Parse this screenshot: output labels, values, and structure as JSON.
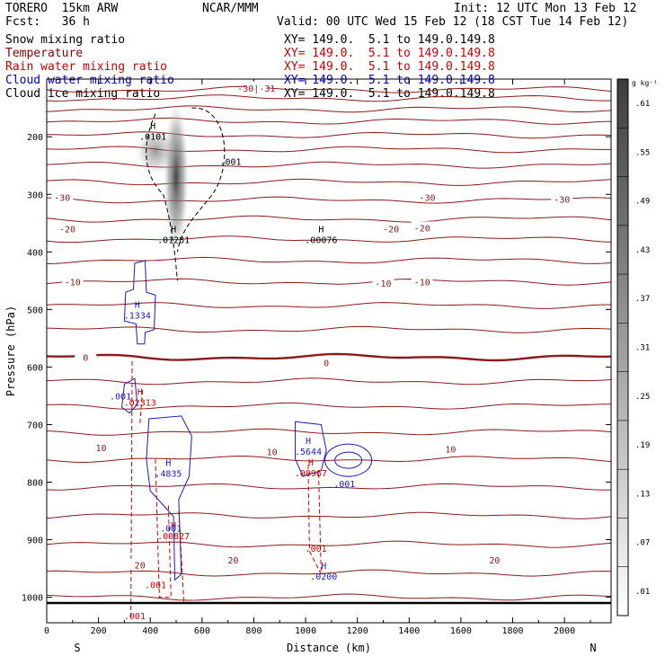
{
  "header": {
    "model": "TORERO  15km ARW",
    "center": "NCAR/MMM",
    "init": "Init: 12 UTC Mon 13 Feb 12",
    "fcst": "Fcst:   36 h",
    "valid": "Valid: 00 UTC Wed 15 Feb 12 (18 CST Tue 14 Feb 12)"
  },
  "fields": [
    {
      "name": "Snow mixing ratio",
      "xy": "XY= 149.0.  5.1 to 149.0.149.8",
      "color": "#000000"
    },
    {
      "name": "Temperature",
      "xy": "XY= 149.0.  5.1 to 149.0.149.8",
      "color": "#8b0000"
    },
    {
      "name": "Rain water mixing ratio",
      "xy": "XY= 149.0.  5.1 to 149.0.149.8",
      "color": "#cc0000"
    },
    {
      "name": "Cloud water mixing ratio",
      "xy": "XY= 149.0.  5.1 to 149.0.149.8",
      "color": "#0000cc"
    },
    {
      "name": "Cloud ice mixing ratio",
      "xy": "XY= 149.0.  5.1 to 149.0.149.8",
      "color": "#000000"
    }
  ],
  "chart_data": {
    "type": "cross-section",
    "xlabel": "Distance (km)",
    "ylabel": "Pressure (hPa)",
    "xlim": [
      0,
      2180
    ],
    "ylim": [
      1050,
      100
    ],
    "x_ticks": [
      0,
      200,
      400,
      600,
      800,
      1000,
      1200,
      1400,
      1600,
      1800,
      2000
    ],
    "x_tick_labels": [
      "0",
      "200",
      "400",
      "600",
      "800",
      "1000",
      "1200",
      "1400",
      "1600",
      "1800",
      "2000"
    ],
    "y_ticks": [
      200,
      300,
      400,
      500,
      600,
      700,
      800,
      900,
      1000
    ],
    "y_tick_labels": [
      "200",
      "300",
      "400",
      "500",
      "600",
      "700",
      "800",
      "900",
      "1000"
    ],
    "endpoint_left": "S",
    "endpoint_right": "N",
    "colorbar": {
      "unit": "g kg⁻¹",
      "labels": [
        ".01",
        ".07",
        ".13",
        ".19",
        ".25",
        ".31",
        ".37",
        ".43",
        ".49",
        ".55",
        ".61"
      ]
    },
    "temperature_isotherm_labels": [
      {
        "x": 60,
        "p": 305,
        "text": "-30"
      },
      {
        "x": 1470,
        "p": 305,
        "text": "-30"
      },
      {
        "x": 1990,
        "p": 308,
        "text": "-30"
      },
      {
        "x": 80,
        "p": 360,
        "text": "-20"
      },
      {
        "x": 1330,
        "p": 360,
        "text": "-20"
      },
      {
        "x": 1450,
        "p": 358,
        "text": "-20"
      },
      {
        "x": 100,
        "p": 452,
        "text": "-10"
      },
      {
        "x": 1300,
        "p": 454,
        "text": "-10"
      },
      {
        "x": 1450,
        "p": 452,
        "text": "-10"
      },
      {
        "x": 150,
        "p": 583,
        "text": "0"
      },
      {
        "x": 1080,
        "p": 592,
        "text": "0"
      },
      {
        "x": 210,
        "p": 740,
        "text": "10"
      },
      {
        "x": 870,
        "p": 747,
        "text": "10"
      },
      {
        "x": 1560,
        "p": 742,
        "text": "10"
      },
      {
        "x": 360,
        "p": 944,
        "text": "20"
      },
      {
        "x": 720,
        "p": 935,
        "text": "20"
      },
      {
        "x": 1730,
        "p": 935,
        "text": "20"
      },
      {
        "x": 810,
        "p": 115,
        "text": "-30|-31"
      }
    ],
    "maxima": [
      {
        "field": "Cloud ice mixing ratio",
        "x": 410,
        "p": 193,
        "value": ".0101"
      },
      {
        "field": "Cloud ice mixing ratio",
        "x": 490,
        "p": 372,
        "value": ".01281"
      },
      {
        "field": "Cloud ice mixing ratio",
        "x": 1060,
        "p": 372,
        "value": ".00076"
      },
      {
        "field": "Cloud water mixing ratio",
        "x": 350,
        "p": 503,
        "value": ".1334"
      },
      {
        "field": "Cloud water mixing ratio",
        "x": 470,
        "p": 778,
        "value": ".4835"
      },
      {
        "field": "Cloud water mixing ratio",
        "x": 1010,
        "p": 740,
        "value": ".5644"
      },
      {
        "field": "Cloud water mixing ratio",
        "x": 1070,
        "p": 957,
        "value": ".0200"
      },
      {
        "field": "Rain water mixing ratio",
        "x": 360,
        "p": 655,
        "value": ".02313"
      },
      {
        "field": "Rain water mixing ratio",
        "x": 490,
        "p": 887,
        "value": ".00827"
      },
      {
        "field": "Rain water mixing ratio",
        "x": 1020,
        "p": 777,
        "value": ".00967"
      }
    ],
    "contour_labels": [
      {
        "field": "Cloud ice mixing ratio",
        "x": 710,
        "p": 243,
        "value": ".001"
      },
      {
        "field": "Cloud water mixing ratio",
        "x": 285,
        "p": 650,
        "value": ".001"
      },
      {
        "field": "Cloud water mixing ratio",
        "x": 480,
        "p": 880,
        "value": ".001"
      },
      {
        "field": "Cloud water mixing ratio",
        "x": 1150,
        "p": 802,
        "value": ".001"
      },
      {
        "field": "Rain water mixing ratio",
        "x": 420,
        "p": 978,
        "value": ".001"
      },
      {
        "field": "Rain water mixing ratio",
        "x": 340,
        "p": 1032,
        "value": ".001"
      },
      {
        "field": "Rain water mixing ratio",
        "x": 1040,
        "p": 915,
        "value": ".001"
      }
    ]
  }
}
